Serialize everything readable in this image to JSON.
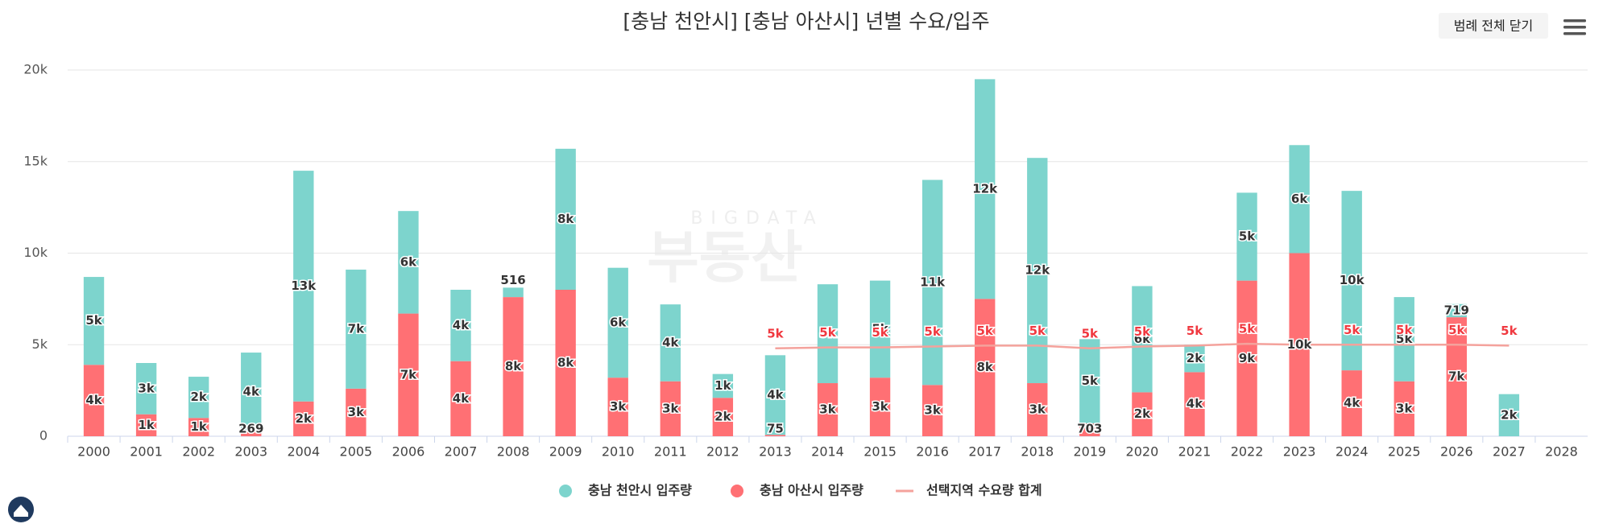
{
  "chart_data": {
    "type": "stacked_bar_line",
    "title": "[충남 천안시] [충남 아산시] 년별 수요/입주",
    "button": "범례 전체 닫기",
    "watermark": [
      "BIGDATA",
      "부동산"
    ],
    "categories": [
      "2000",
      "2001",
      "2002",
      "2003",
      "2004",
      "2005",
      "2006",
      "2007",
      "2008",
      "2009",
      "2010",
      "2011",
      "2012",
      "2013",
      "2014",
      "2015",
      "2016",
      "2017",
      "2018",
      "2019",
      "2020",
      "2021",
      "2022",
      "2023",
      "2024",
      "2025",
      "2026",
      "2027",
      "2028"
    ],
    "ylim": [
      0,
      20000
    ],
    "yticks": [
      0,
      {
        "value": 5000,
        "label": "5k"
      },
      {
        "value": 10000,
        "label": "10k"
      },
      {
        "value": 15000,
        "label": "15k"
      },
      {
        "value": 20000,
        "label": "20k"
      }
    ],
    "grid": true,
    "legend": "bottom",
    "series": [
      {
        "name": "충남 천안시 입주량",
        "color": "#7dd4cd",
        "kind": "bar",
        "values": [
          4800,
          2800,
          2250,
          4300,
          12600,
          6500,
          5600,
          3900,
          516,
          7700,
          6000,
          4200,
          1300,
          4350,
          5400,
          5300,
          11200,
          12000,
          12300,
          4600,
          5800,
          1500,
          4800,
          5900,
          9800,
          4600,
          719,
          2300,
          null
        ],
        "value_labels": [
          "5k",
          "3k",
          "2k",
          "4k",
          "13k",
          "7k",
          "6k",
          "4k",
          "516",
          "8k",
          "6k",
          "4k",
          "1k",
          "4k",
          "5k",
          "5k",
          "11k",
          "12k",
          "12k",
          "5k",
          "6k",
          "2k",
          "5k",
          "6k",
          "10k",
          "5k",
          "719",
          "2k",
          null
        ]
      },
      {
        "name": "충남 아산시 입주량",
        "color": "#ff7074",
        "kind": "bar",
        "values": [
          3900,
          1200,
          1000,
          269,
          1900,
          2600,
          6700,
          4100,
          7600,
          8000,
          3200,
          3000,
          2100,
          75,
          2900,
          3200,
          2800,
          7500,
          2900,
          703,
          2400,
          3500,
          8500,
          10000,
          3600,
          3000,
          6500,
          null,
          null
        ],
        "value_labels": [
          "4k",
          "1k",
          "1k",
          "269",
          "2k",
          "3k",
          "7k",
          "4k",
          "8k",
          "8k",
          "3k",
          "3k",
          "2k",
          "75",
          "3k",
          "3k",
          "3k",
          "8k",
          "3k",
          "703",
          "2k",
          "4k",
          "9k",
          "10k",
          "4k",
          "3k",
          "7k",
          null,
          null
        ]
      },
      {
        "name": "선택지역 수요량 합계",
        "color": "#f4a29c",
        "kind": "line",
        "values": [
          null,
          null,
          null,
          null,
          null,
          null,
          null,
          null,
          null,
          null,
          null,
          null,
          null,
          4800,
          4850,
          4850,
          4900,
          4950,
          4950,
          4800,
          4900,
          4950,
          5050,
          5000,
          5000,
          5000,
          5000,
          4950,
          null
        ],
        "value_labels": [
          null,
          null,
          null,
          null,
          null,
          null,
          null,
          null,
          null,
          null,
          null,
          null,
          null,
          "5k",
          "5k",
          "5k",
          "5k",
          "5k",
          "5k",
          "5k",
          "5k",
          "5k",
          "5k",
          null,
          "5k",
          "5k",
          "5k",
          "5k",
          null
        ]
      }
    ]
  }
}
